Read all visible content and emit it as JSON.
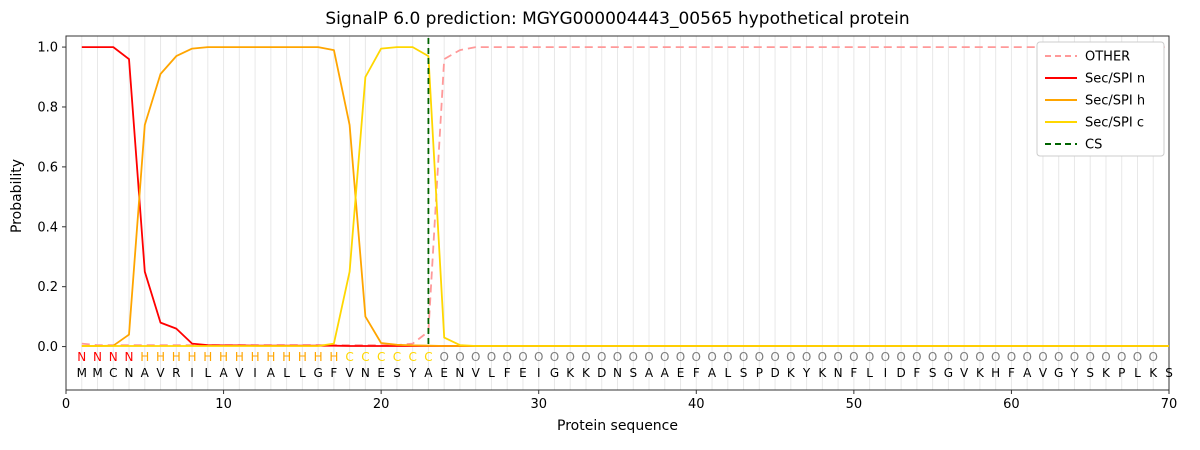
{
  "chart_data": {
    "type": "line",
    "title": "SignalP 6.0 prediction: MGYG000004443_00565 hypothetical protein",
    "xlabel": "Protein sequence",
    "ylabel": "Probability",
    "xlim": [
      0,
      70
    ],
    "ylim": [
      -0.145,
      1.037
    ],
    "x_ticks": [
      0,
      10,
      20,
      30,
      40,
      50,
      60,
      70
    ],
    "y_ticks": [
      0.0,
      0.2,
      0.4,
      0.6,
      0.8,
      1.0
    ],
    "grid": "vertical-per-residue",
    "grid_color": "#e8e8e8",
    "frame_color": "#333333",
    "legend_position": "upper right",
    "x": [
      1,
      2,
      3,
      4,
      5,
      6,
      7,
      8,
      9,
      10,
      11,
      12,
      13,
      14,
      15,
      16,
      17,
      18,
      19,
      20,
      21,
      22,
      23,
      24,
      25,
      26,
      27,
      28,
      29,
      30,
      31,
      32,
      33,
      34,
      35,
      36,
      37,
      38,
      39,
      40,
      41,
      42,
      43,
      44,
      45,
      46,
      47,
      48,
      49,
      50,
      51,
      52,
      53,
      54,
      55,
      56,
      57,
      58,
      59,
      60,
      61,
      62,
      63,
      64,
      65,
      66,
      67,
      68,
      69,
      70
    ],
    "series": [
      {
        "name": "OTHER",
        "color": "#ff9999",
        "dash": "dashed",
        "values": [
          0.01,
          0.005,
          0.005,
          0.005,
          0.005,
          0.005,
          0.005,
          0.005,
          0.005,
          0.005,
          0.005,
          0.005,
          0.005,
          0.005,
          0.005,
          0.005,
          0.005,
          0.005,
          0.005,
          0.005,
          0.005,
          0.01,
          0.05,
          0.96,
          0.99,
          1.0,
          1.0,
          1.0,
          1.0,
          1.0,
          1.0,
          1.0,
          1.0,
          1.0,
          1.0,
          1.0,
          1.0,
          1.0,
          1.0,
          1.0,
          1.0,
          1.0,
          1.0,
          1.0,
          1.0,
          1.0,
          1.0,
          1.0,
          1.0,
          1.0,
          1.0,
          1.0,
          1.0,
          1.0,
          1.0,
          1.0,
          1.0,
          1.0,
          1.0,
          1.0,
          1.0,
          1.0,
          1.0,
          1.0,
          1.0,
          1.0,
          1.0,
          1.0,
          1.0,
          1.0
        ]
      },
      {
        "name": "Sec/SPI n",
        "color": "#ff0000",
        "dash": "solid",
        "values": [
          1.0,
          1.0,
          1.0,
          0.96,
          0.25,
          0.08,
          0.06,
          0.01,
          0.005,
          0.004,
          0.004,
          0.003,
          0.003,
          0.003,
          0.003,
          0.003,
          0.003,
          0.002,
          0.002,
          0.002,
          0.002,
          0.002,
          0.002,
          0.002,
          0.002,
          0.002,
          0.002,
          0.002,
          0.002,
          0.002,
          0.002,
          0.002,
          0.002,
          0.002,
          0.002,
          0.002,
          0.002,
          0.002,
          0.002,
          0.002,
          0.002,
          0.002,
          0.002,
          0.002,
          0.002,
          0.002,
          0.002,
          0.002,
          0.002,
          0.002,
          0.002,
          0.002,
          0.002,
          0.002,
          0.002,
          0.002,
          0.002,
          0.002,
          0.002,
          0.002,
          0.002,
          0.002,
          0.002,
          0.002,
          0.002,
          0.002,
          0.002,
          0.002,
          0.002,
          0.002
        ]
      },
      {
        "name": "Sec/SPI h",
        "color": "#ffa500",
        "dash": "solid",
        "values": [
          0.002,
          0.002,
          0.003,
          0.04,
          0.74,
          0.91,
          0.97,
          0.995,
          1.0,
          1.0,
          1.0,
          1.0,
          1.0,
          1.0,
          1.0,
          1.0,
          0.99,
          0.74,
          0.1,
          0.012,
          0.006,
          0.004,
          0.003,
          0.002,
          0.002,
          0.002,
          0.002,
          0.002,
          0.002,
          0.002,
          0.002,
          0.002,
          0.002,
          0.002,
          0.002,
          0.002,
          0.002,
          0.002,
          0.002,
          0.002,
          0.002,
          0.002,
          0.002,
          0.002,
          0.002,
          0.002,
          0.002,
          0.002,
          0.002,
          0.002,
          0.002,
          0.002,
          0.002,
          0.002,
          0.002,
          0.002,
          0.002,
          0.002,
          0.002,
          0.002,
          0.002,
          0.002,
          0.002,
          0.002,
          0.002,
          0.002,
          0.002,
          0.002,
          0.002,
          0.002
        ]
      },
      {
        "name": "Sec/SPI c",
        "color": "#ffd700",
        "dash": "solid",
        "values": [
          0.002,
          0.002,
          0.002,
          0.002,
          0.002,
          0.002,
          0.002,
          0.002,
          0.002,
          0.002,
          0.002,
          0.002,
          0.002,
          0.002,
          0.002,
          0.002,
          0.01,
          0.25,
          0.9,
          0.995,
          1.0,
          1.0,
          0.97,
          0.03,
          0.005,
          0.002,
          0.002,
          0.002,
          0.002,
          0.002,
          0.002,
          0.002,
          0.002,
          0.002,
          0.002,
          0.002,
          0.002,
          0.002,
          0.002,
          0.002,
          0.002,
          0.002,
          0.002,
          0.002,
          0.002,
          0.002,
          0.002,
          0.002,
          0.002,
          0.002,
          0.002,
          0.002,
          0.002,
          0.002,
          0.002,
          0.002,
          0.002,
          0.002,
          0.002,
          0.002,
          0.002,
          0.002,
          0.002,
          0.002,
          0.002,
          0.002,
          0.002,
          0.002,
          0.002,
          0.002
        ]
      }
    ],
    "cs_marker": {
      "name": "CS",
      "position": 23,
      "color": "#006400",
      "dash": "dashed"
    },
    "sequence": "MMCNAVRILAVIALLGFVNESYAENVLFEIGKKDNSAAEFALSPDKYKNFLIDFSGVKHFAVGYSKPLKS",
    "region_labels": "NNNNHHHHHHHHHHHHHCCCCCCOOOOOOOOOOOOOOOOOOOOOOOOOOOOOOOOOOOOOOOOOOOOOO",
    "region_colors": {
      "N": "#ff0000",
      "H": "#ffa500",
      "C": "#ffd700",
      "O": "#7f7f7f"
    }
  }
}
